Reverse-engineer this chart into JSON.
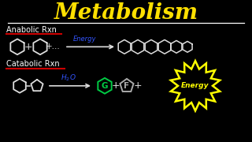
{
  "bg_color": "#000000",
  "title": "Metabolism",
  "title_color": "#FFE000",
  "title_fontsize": 20,
  "anabolic_label": "Anabolic Rxn",
  "anabolic_color": "#FFFFFF",
  "anabolic_underline_color": "#CC0000",
  "catabolic_label": "Catabolic Rxn",
  "catabolic_color": "#FFFFFF",
  "catabolic_underline_color": "#CC0000",
  "energy_color": "#3355FF",
  "h2o_color": "#3355FF",
  "G_color": "#00CC44",
  "F_color": "#AAAAAA",
  "Energy_burst_color": "#FFFF00",
  "arrow_color": "#DDDDDD",
  "hexagon_color": "#DDDDDD",
  "pentagon_color": "#DDDDDD",
  "plus_color": "#DDDDDD"
}
